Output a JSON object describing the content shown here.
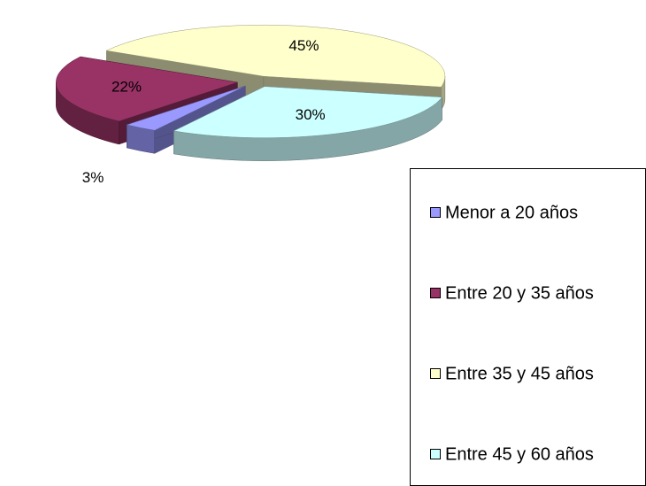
{
  "chart_data": {
    "type": "pie3d",
    "categories": [
      "Menor a 20 años",
      "Entre 20 y 35 años",
      "Entre 35 y 45 años",
      "Entre 45 y 60 años"
    ],
    "values": [
      3,
      22,
      45,
      30
    ],
    "value_labels": [
      "3%",
      "22%",
      "45%",
      "30%"
    ],
    "colors": [
      "#9999ff",
      "#993366",
      "#ffffcc",
      "#ccffff"
    ],
    "legend": "right"
  }
}
